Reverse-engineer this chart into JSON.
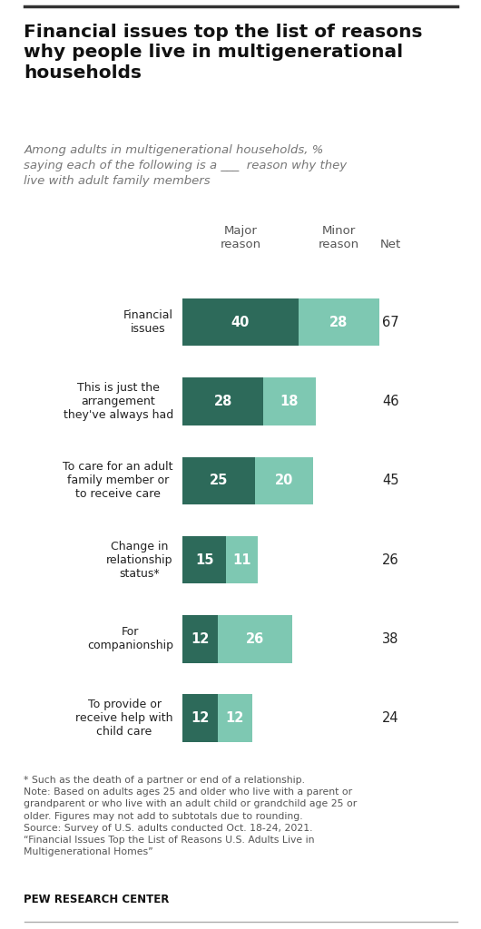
{
  "title": "Financial issues top the list of reasons\nwhy people live in multigenerational\nhouseholds",
  "subtitle": "Among adults in multigenerational households, %\nsaying each of the following is a ___  reason why they\nlive with adult family members",
  "categories": [
    "Financial\nissues",
    "This is just the\narrangement\nthey've always had",
    "To care for an adult\nfamily member or\nto receive care",
    "Change in\nrelationship\nstatus*",
    "For\ncompanionship",
    "To provide or\nreceive help with\nchild care"
  ],
  "major_values": [
    40,
    28,
    25,
    15,
    12,
    12
  ],
  "minor_values": [
    28,
    18,
    20,
    11,
    26,
    12
  ],
  "net_values": [
    67,
    46,
    45,
    26,
    38,
    24
  ],
  "major_color": "#2d6a5a",
  "minor_color": "#7ec8b2",
  "background_color": "#ffffff",
  "text_color": "#222222",
  "header_color": "#555555",
  "footnote_color": "#555555",
  "footnote": "* Such as the death of a partner or end of a relationship.\nNote: Based on adults ages 25 and older who live with a parent or\ngrandparent or who live with an adult child or grandchild age 25 or\nolder. Figures may not add to subtotals due to rounding.\nSource: Survey of U.S. adults conducted Oct. 18-24, 2021.\n“Financial Issues Top the List of Reasons U.S. Adults Live in\nMultigenerational Homes”",
  "source_label": "PEW RESEARCH CENTER",
  "bar_scale": 1.0,
  "max_bar_width": 68
}
